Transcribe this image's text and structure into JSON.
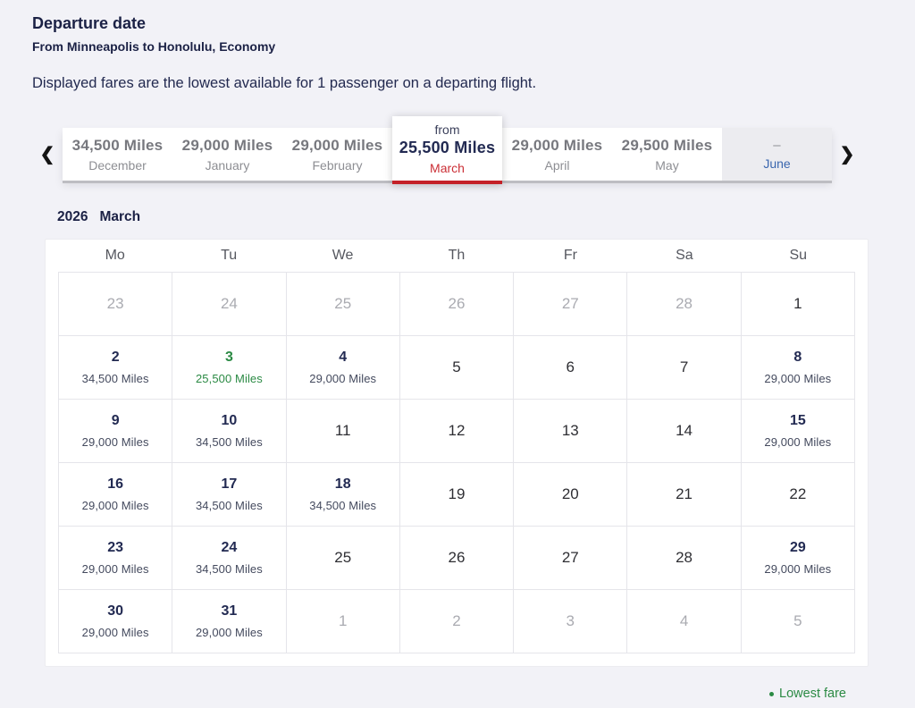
{
  "page": {
    "title": "Departure date",
    "subtitle": "From Minneapolis to Honolulu, Economy",
    "description": "Displayed fares are the lowest available for 1 passenger on a departing flight."
  },
  "colors": {
    "navy": "#222a52",
    "selected_red": "#c42127",
    "lowest_fare_green": "#2b8a44",
    "disabled_blue": "#3a66ae",
    "background": "#f2f2f7"
  },
  "carousel": {
    "prev_icon": "❮",
    "next_icon": "❯",
    "tabs": [
      {
        "month": "December",
        "fare": "34,500 Miles",
        "state": "normal"
      },
      {
        "month": "January",
        "fare": "29,000 Miles",
        "state": "normal"
      },
      {
        "month": "February",
        "fare": "29,000 Miles",
        "state": "normal"
      },
      {
        "month": "March",
        "fare": "25,500 Miles",
        "prefix": "from",
        "state": "selected"
      },
      {
        "month": "April",
        "fare": "29,000 Miles",
        "state": "normal"
      },
      {
        "month": "May",
        "fare": "29,500 Miles",
        "state": "normal"
      },
      {
        "month": "June",
        "fare": "–",
        "state": "disabled"
      }
    ]
  },
  "calendar": {
    "year": "2026",
    "month": "March",
    "day_headers": [
      "Mo",
      "Tu",
      "We",
      "Th",
      "Fr",
      "Sa",
      "Su"
    ],
    "weeks": [
      [
        {
          "day": "23",
          "out": true
        },
        {
          "day": "24",
          "out": true
        },
        {
          "day": "25",
          "out": true
        },
        {
          "day": "26",
          "out": true
        },
        {
          "day": "27",
          "out": true
        },
        {
          "day": "28",
          "out": true
        },
        {
          "day": "1"
        }
      ],
      [
        {
          "day": "2",
          "fare": "34,500 Miles"
        },
        {
          "day": "3",
          "fare": "25,500 Miles",
          "lowest": true
        },
        {
          "day": "4",
          "fare": "29,000 Miles"
        },
        {
          "day": "5"
        },
        {
          "day": "6"
        },
        {
          "day": "7"
        },
        {
          "day": "8",
          "fare": "29,000 Miles"
        }
      ],
      [
        {
          "day": "9",
          "fare": "29,000 Miles"
        },
        {
          "day": "10",
          "fare": "34,500 Miles"
        },
        {
          "day": "11"
        },
        {
          "day": "12"
        },
        {
          "day": "13"
        },
        {
          "day": "14"
        },
        {
          "day": "15",
          "fare": "29,000 Miles"
        }
      ],
      [
        {
          "day": "16",
          "fare": "29,000 Miles"
        },
        {
          "day": "17",
          "fare": "34,500 Miles"
        },
        {
          "day": "18",
          "fare": "34,500 Miles"
        },
        {
          "day": "19"
        },
        {
          "day": "20"
        },
        {
          "day": "21"
        },
        {
          "day": "22"
        }
      ],
      [
        {
          "day": "23",
          "fare": "29,000 Miles"
        },
        {
          "day": "24",
          "fare": "34,500 Miles"
        },
        {
          "day": "25"
        },
        {
          "day": "26"
        },
        {
          "day": "27"
        },
        {
          "day": "28"
        },
        {
          "day": "29",
          "fare": "29,000 Miles"
        }
      ],
      [
        {
          "day": "30",
          "fare": "29,000 Miles"
        },
        {
          "day": "31",
          "fare": "29,000 Miles"
        },
        {
          "day": "1",
          "out": true
        },
        {
          "day": "2",
          "out": true
        },
        {
          "day": "3",
          "out": true
        },
        {
          "day": "4",
          "out": true
        },
        {
          "day": "5",
          "out": true
        }
      ]
    ]
  },
  "legend": {
    "label": "Lowest fare"
  }
}
